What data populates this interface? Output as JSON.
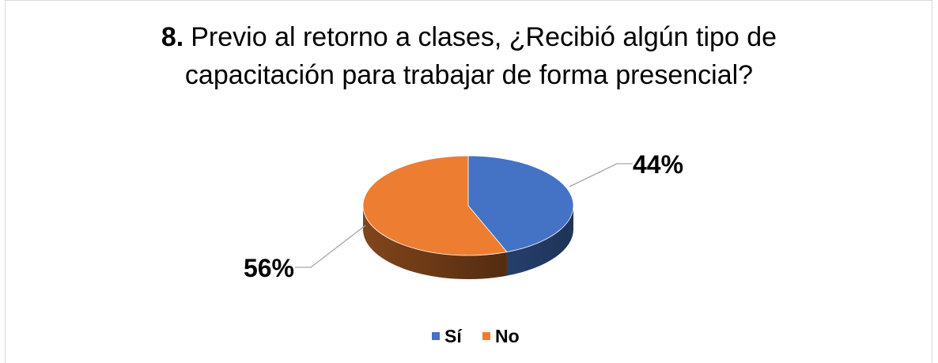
{
  "chart_data": {
    "type": "pie",
    "title_number": "8.",
    "title_lines": [
      "Previo al retorno a clases, ¿Recibió algún tipo de",
      "capacitación para trabajar de forma presencial?"
    ],
    "categories": [
      "Sí",
      "No"
    ],
    "values": [
      44,
      56
    ],
    "value_labels": [
      "44%",
      "56%"
    ],
    "colors": [
      "#4472c4",
      "#ed7d31"
    ],
    "legend": "bottom"
  }
}
